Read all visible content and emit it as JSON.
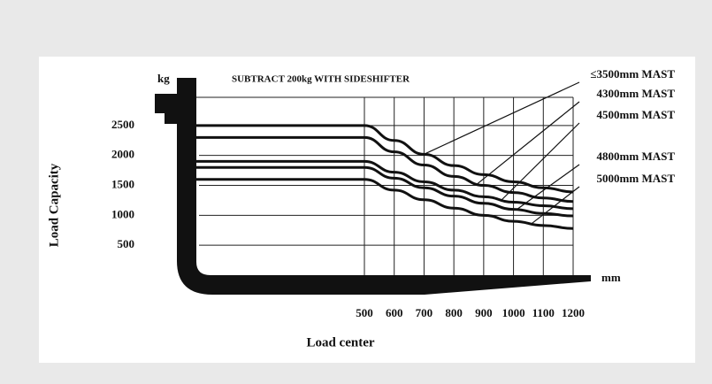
{
  "chart_data": {
    "type": "line",
    "annotation": "SUBTRACT 200kg WITH SIDESHIFTER",
    "y_unit": "kg",
    "x_unit": "mm",
    "ylabel": "Load Capacity",
    "xlabel": "Load center",
    "x": [
      500,
      600,
      700,
      800,
      900,
      1000,
      1100,
      1200
    ],
    "xlim": [
      500,
      1200
    ],
    "xticks": [
      500,
      600,
      700,
      800,
      900,
      1000,
      1100,
      1200
    ],
    "ylim": [
      0,
      3000
    ],
    "yticks": [
      2500,
      2000,
      1500,
      1000,
      500
    ],
    "grid": true,
    "series": [
      {
        "name": "≤3500mm MAST",
        "color": "#111111",
        "values": [
          2500,
          2250,
          2020,
          1830,
          1680,
          1560,
          1460,
          1390
        ]
      },
      {
        "name": "4300mm MAST",
        "color": "#111111",
        "values": [
          2300,
          2060,
          1840,
          1650,
          1500,
          1380,
          1290,
          1230
        ]
      },
      {
        "name": "4500mm MAST",
        "color": "#111111",
        "values": [
          1900,
          1720,
          1560,
          1420,
          1310,
          1220,
          1160,
          1110
        ]
      },
      {
        "name": "4800mm MAST",
        "color": "#111111",
        "values": [
          1800,
          1620,
          1460,
          1320,
          1200,
          1100,
          1030,
          990
        ]
      },
      {
        "name": "5000mm MAST",
        "color": "#111111",
        "values": [
          1600,
          1420,
          1260,
          1120,
          1000,
          900,
          830,
          780
        ]
      }
    ]
  }
}
